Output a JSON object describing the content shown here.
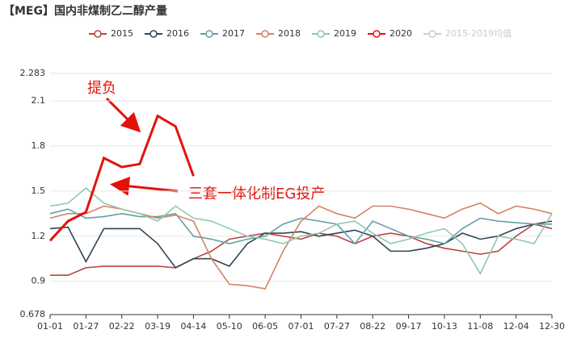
{
  "chart_data": {
    "type": "line",
    "title": "【MEG】国内非煤制乙二醇产量",
    "x": [
      0,
      13,
      26,
      39,
      52,
      65,
      78,
      91,
      104,
      117,
      130,
      143,
      156,
      169,
      182,
      195,
      208,
      221,
      234,
      247,
      260,
      273,
      286,
      299,
      312,
      325,
      338,
      351,
      364
    ],
    "xlim": [
      0,
      364
    ],
    "xticks": [
      {
        "value": 0,
        "label": "01-01"
      },
      {
        "value": 26,
        "label": "01-27"
      },
      {
        "value": 52,
        "label": "02-22"
      },
      {
        "value": 78,
        "label": "03-19"
      },
      {
        "value": 104,
        "label": "04-14"
      },
      {
        "value": 130,
        "label": "05-10"
      },
      {
        "value": 156,
        "label": "06-05"
      },
      {
        "value": 182,
        "label": "07-01"
      },
      {
        "value": 208,
        "label": "07-27"
      },
      {
        "value": 234,
        "label": "08-22"
      },
      {
        "value": 260,
        "label": "09-17"
      },
      {
        "value": 286,
        "label": "10-13"
      },
      {
        "value": 312,
        "label": "11-08"
      },
      {
        "value": 338,
        "label": "12-04"
      },
      {
        "value": 364,
        "label": "12-30"
      }
    ],
    "ylim": [
      0.678,
      2.283
    ],
    "yticks": [
      0.678,
      0.9,
      1.2,
      1.5,
      1.8,
      2.1,
      2.283
    ],
    "grid": true,
    "series": [
      {
        "name": "2015",
        "color": "#b9443d",
        "values": [
          0.94,
          0.94,
          0.99,
          1.0,
          1.0,
          1.0,
          1.0,
          0.99,
          1.05,
          1.1,
          1.18,
          1.2,
          1.22,
          1.2,
          1.18,
          1.22,
          1.2,
          1.15,
          1.2,
          1.22,
          1.2,
          1.15,
          1.12,
          1.1,
          1.08,
          1.1,
          1.2,
          1.28,
          1.25
        ]
      },
      {
        "name": "2016",
        "color": "#2f4554",
        "values": [
          1.25,
          1.26,
          1.03,
          1.25,
          1.25,
          1.25,
          1.15,
          0.99,
          1.05,
          1.05,
          1.0,
          1.15,
          1.22,
          1.22,
          1.23,
          1.2,
          1.22,
          1.24,
          1.2,
          1.1,
          1.1,
          1.12,
          1.15,
          1.22,
          1.18,
          1.2,
          1.25,
          1.28,
          1.3
        ]
      },
      {
        "name": "2017",
        "color": "#61a0a8",
        "values": [
          1.35,
          1.38,
          1.32,
          1.33,
          1.35,
          1.33,
          1.33,
          1.35,
          1.2,
          1.18,
          1.15,
          1.18,
          1.2,
          1.28,
          1.32,
          1.3,
          1.28,
          1.15,
          1.3,
          1.25,
          1.2,
          1.18,
          1.15,
          1.25,
          1.32,
          1.3,
          1.29,
          1.28,
          1.28
        ]
      },
      {
        "name": "2018",
        "color": "#d48265",
        "values": [
          1.32,
          1.35,
          1.35,
          1.4,
          1.38,
          1.35,
          1.32,
          1.34,
          1.3,
          1.05,
          0.88,
          0.87,
          0.85,
          1.1,
          1.3,
          1.4,
          1.35,
          1.32,
          1.4,
          1.4,
          1.38,
          1.35,
          1.32,
          1.38,
          1.42,
          1.35,
          1.4,
          1.38,
          1.35
        ]
      },
      {
        "name": "2019",
        "color": "#91c7ae",
        "values": [
          1.4,
          1.42,
          1.52,
          1.42,
          1.38,
          1.35,
          1.3,
          1.4,
          1.32,
          1.3,
          1.25,
          1.2,
          1.18,
          1.15,
          1.2,
          1.22,
          1.28,
          1.3,
          1.22,
          1.15,
          1.18,
          1.22,
          1.25,
          1.15,
          0.95,
          1.2,
          1.18,
          1.15,
          1.35
        ]
      },
      {
        "name": "2020",
        "color": "#e3120b",
        "values": [
          1.17,
          1.3,
          1.36,
          1.72,
          1.66,
          1.68,
          2.0,
          1.93,
          1.6,
          null,
          null,
          null,
          null,
          null,
          null,
          null,
          null,
          null,
          null,
          null,
          null,
          null,
          null,
          null,
          null,
          null,
          null,
          null,
          null
        ]
      }
    ],
    "legend_inactive": {
      "name": "2015-2019均值",
      "color": "#cccccc"
    },
    "annotations": [
      "提负",
      "三套一体化制EG投产"
    ]
  }
}
